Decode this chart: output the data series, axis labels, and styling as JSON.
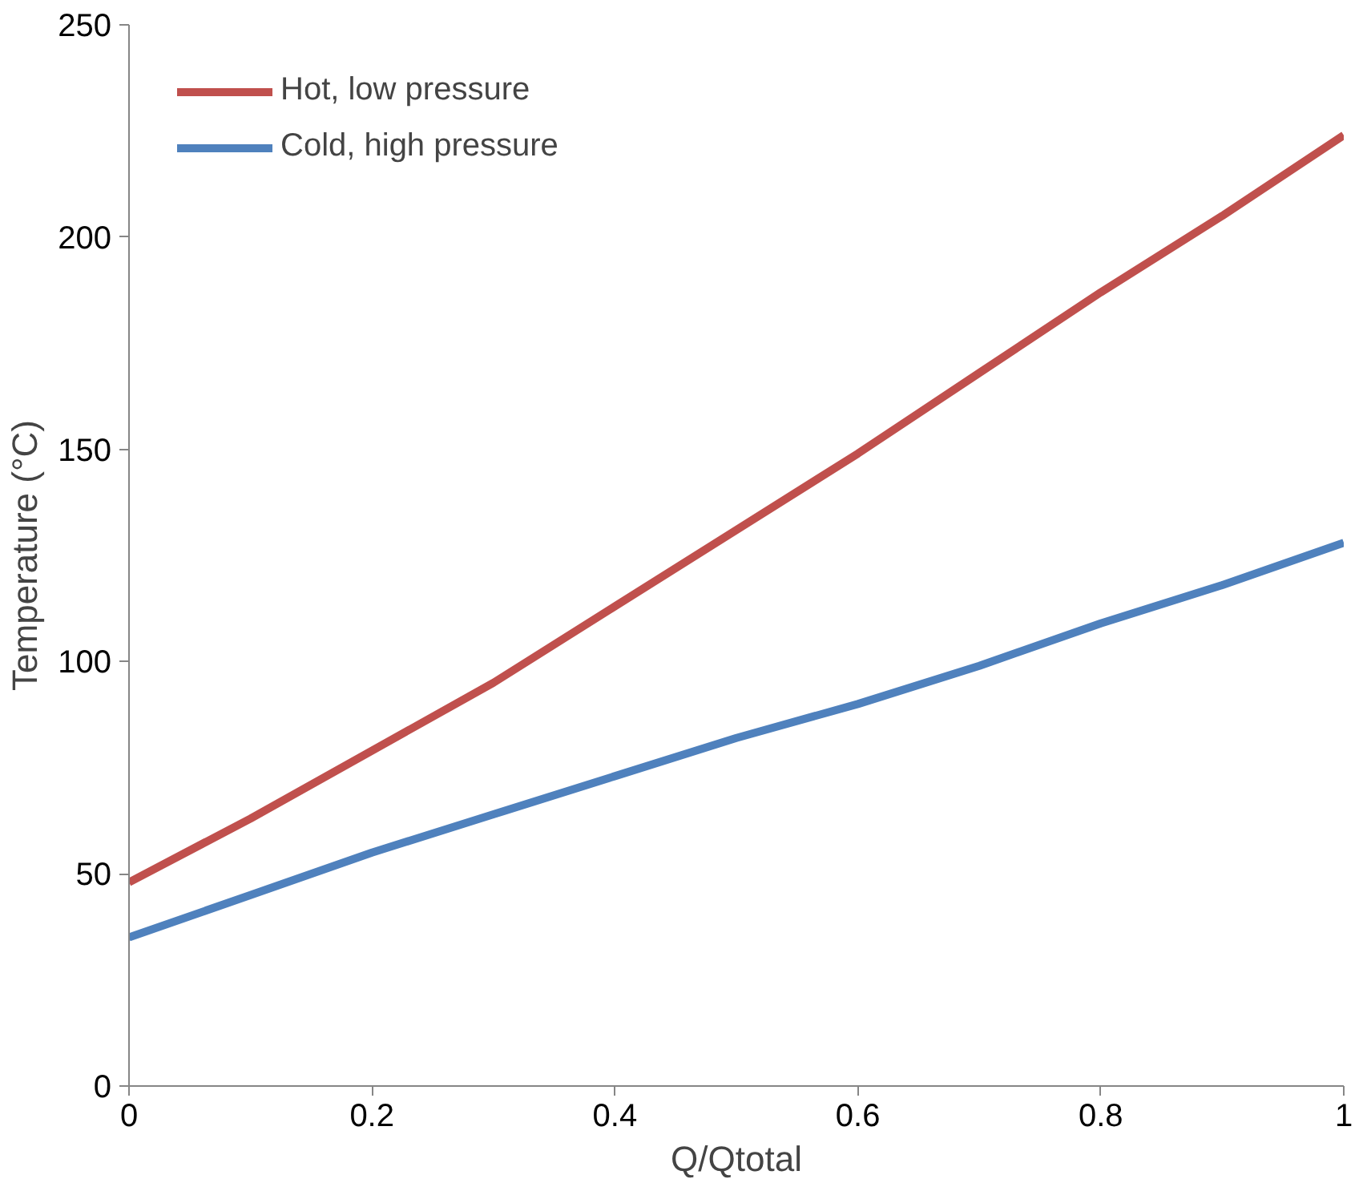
{
  "chart_data": {
    "type": "line",
    "xlabel": "Q/Qtotal",
    "ylabel": "Temperature (°C)",
    "x": [
      0,
      0.1,
      0.2,
      0.3,
      0.4,
      0.5,
      0.6,
      0.7,
      0.8,
      0.9,
      1
    ],
    "series": [
      {
        "name": "Hot, low pressure",
        "color": "#c0504d",
        "values": [
          48,
          63,
          79,
          95,
          113,
          131,
          149,
          168,
          187,
          205,
          224
        ]
      },
      {
        "name": "Cold, high pressure",
        "color": "#4f81bd",
        "values": [
          35,
          45,
          55,
          64,
          73,
          82,
          90,
          99,
          109,
          118,
          128
        ]
      }
    ],
    "xlim": [
      0,
      1
    ],
    "ylim": [
      0,
      250
    ],
    "xticks": [
      0,
      0.2,
      0.4,
      0.6,
      0.8,
      1
    ],
    "yticks": [
      0,
      50,
      100,
      150,
      200,
      250
    ],
    "grid": false,
    "legend": "top left",
    "marker": "none",
    "line_style": "solid"
  }
}
